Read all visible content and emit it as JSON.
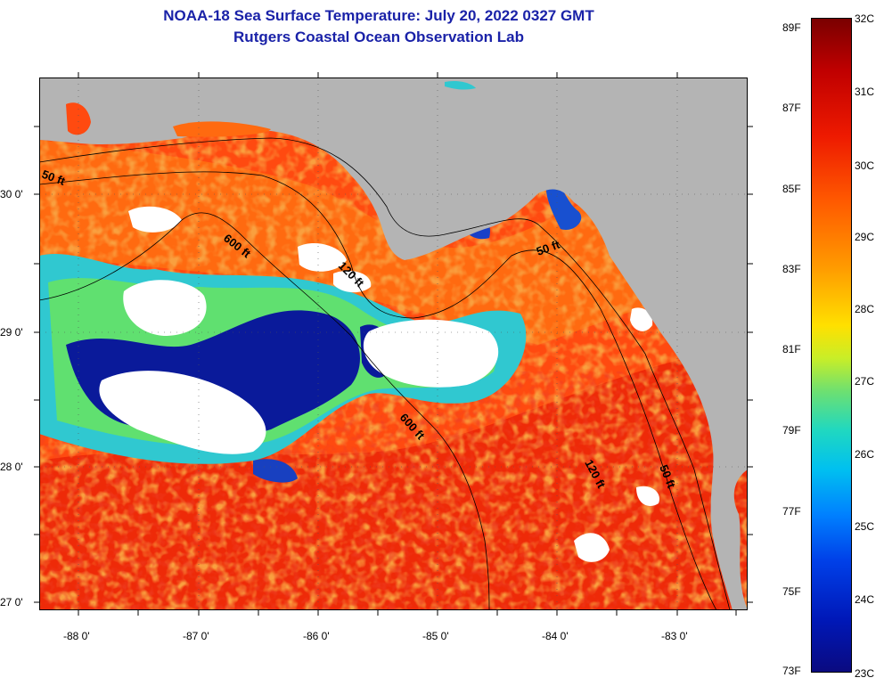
{
  "header": {
    "title_line1": "NOAA-18 Sea Surface Temperature:  July 20, 2022 0327 GMT",
    "title_line2": "Rutgers Coastal Ocean Observation Lab"
  },
  "map": {
    "lat_labels": [
      "30 0'",
      "29 0'",
      "28 0'",
      "27 0'"
    ],
    "lon_labels": [
      "-88 0'",
      "-87 0'",
      "-86 0'",
      "-85 0'",
      "-84 0'",
      "-83 0'"
    ],
    "contour_labels": [
      "50 ft",
      "600 ft",
      "120 ft",
      "50 ft",
      "600 ft",
      "120 ft",
      "50 ft"
    ],
    "colors": {
      "land": "#b4b4b4",
      "cloud": "#ffffff",
      "warm": "#ff4a10",
      "cool": "#0a1a9a"
    }
  },
  "colorbar": {
    "fahrenheit": [
      "89F",
      "87F",
      "85F",
      "83F",
      "81F",
      "79F",
      "77F",
      "75F",
      "73F"
    ],
    "celsius": [
      "32C",
      "31C",
      "30C",
      "29C",
      "28C",
      "27C",
      "26C",
      "25C",
      "24C",
      "23C"
    ]
  }
}
